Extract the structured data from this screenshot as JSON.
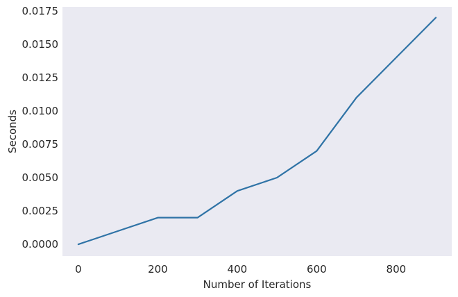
{
  "chart_data": {
    "type": "line",
    "title": "",
    "xlabel": "Number of Iterations",
    "ylabel": "Seconds",
    "xlim": [
      -40,
      940
    ],
    "ylim": [
      -0.00088,
      0.0178
    ],
    "grid": false,
    "background_color": "#eaeaf2",
    "x_ticks": [
      0,
      200,
      400,
      600,
      800
    ],
    "x_tick_labels": [
      "0",
      "200",
      "400",
      "600",
      "800"
    ],
    "y_ticks": [
      0.0,
      0.0025,
      0.005,
      0.0075,
      0.01,
      0.0125,
      0.015,
      0.0175
    ],
    "y_tick_labels": [
      "0.0000",
      "0.0025",
      "0.0050",
      "0.0075",
      "0.0100",
      "0.0125",
      "0.0150",
      "0.0175"
    ],
    "series": [
      {
        "color": "#2f73a6",
        "x": [
          0,
          100,
          200,
          300,
          400,
          500,
          600,
          700,
          800,
          900
        ],
        "y": [
          0.0,
          0.001,
          0.002,
          0.002,
          0.004,
          0.005,
          0.007,
          0.011,
          0.014,
          0.017
        ]
      }
    ]
  }
}
